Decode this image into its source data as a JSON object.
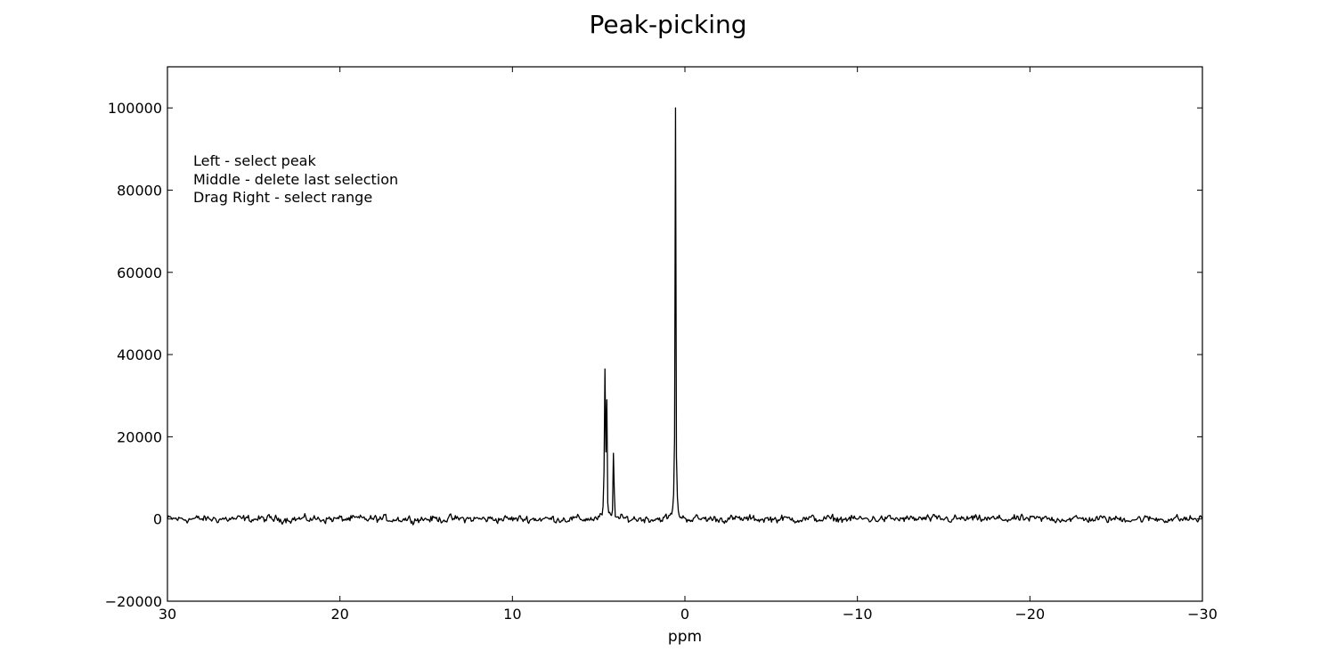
{
  "figure": {
    "title": "Peak-picking",
    "background": "#ffffff",
    "line_color": "#000000"
  },
  "chart_data": {
    "type": "line",
    "title": "Peak-picking",
    "xlabel": "ppm",
    "ylabel": "",
    "xlim": [
      30,
      -30
    ],
    "ylim": [
      -20000,
      110000
    ],
    "x_inverted": true,
    "grid": false,
    "x_ticks": [
      30,
      20,
      10,
      0,
      -10,
      -20,
      -30
    ],
    "x_tick_labels": [
      "30",
      "20",
      "10",
      "0",
      "−10",
      "−20",
      "−30"
    ],
    "y_ticks": [
      -20000,
      0,
      20000,
      40000,
      60000,
      80000,
      100000
    ],
    "y_tick_labels": [
      "−20000",
      "0",
      "20000",
      "40000",
      "60000",
      "80000",
      "100000"
    ],
    "annotation_lines": [
      "Left - select peak",
      "Middle - delete last selection",
      "Drag Right - select range"
    ],
    "series": [
      {
        "style": "noisy spectrum",
        "baseline": 0,
        "noise_amplitude": 1500,
        "peaks": [
          {
            "x": 4.65,
            "y": 36500
          },
          {
            "x": 4.55,
            "y": 29000
          },
          {
            "x": 4.12,
            "y": 16000
          },
          {
            "x": 0.55,
            "y": 100000
          }
        ]
      }
    ]
  }
}
